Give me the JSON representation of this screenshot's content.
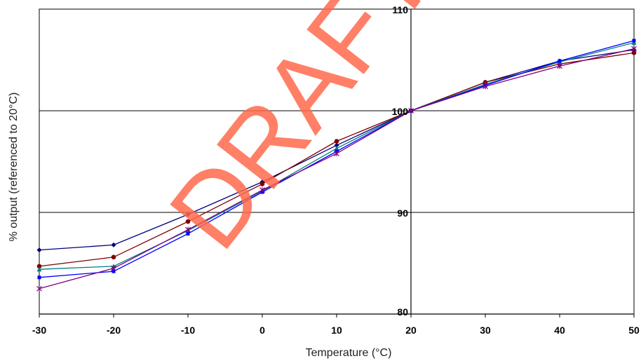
{
  "chart_data": {
    "type": "line",
    "title": "",
    "xlabel": "Temperature (°C)",
    "ylabel": "% output (referenced to 20°C)",
    "x": [
      -30,
      -20,
      -10,
      0,
      10,
      20,
      30,
      40,
      50
    ],
    "xlim": [
      -30,
      50
    ],
    "ylim": [
      80,
      110
    ],
    "x_tick_labels": [
      "-30",
      "-20",
      "-10",
      "0",
      "10",
      "20",
      "30",
      "40",
      "50"
    ],
    "y_tick_labels": [
      "80",
      "90",
      "100",
      "110"
    ],
    "y_ticks": [
      80,
      90,
      100,
      110
    ],
    "grid": "horizontal",
    "legend": "none",
    "watermark": "DRAFT",
    "series": [
      {
        "color": "#000080",
        "marker": "diamond",
        "values": [
          86.3,
          86.8,
          89.8,
          93.0,
          96.6,
          100.0,
          102.8,
          104.9,
          106.0
        ]
      },
      {
        "color": "#800000",
        "marker": "circle",
        "values": [
          84.7,
          85.6,
          89.1,
          92.8,
          97.0,
          100.0,
          102.8,
          104.6,
          105.7
        ]
      },
      {
        "color": "#008080",
        "marker": "triangle",
        "values": [
          84.4,
          84.7,
          88.2,
          92.1,
          96.3,
          100.0,
          102.6,
          104.8,
          106.7
        ]
      },
      {
        "color": "#0000ff",
        "marker": "square",
        "values": [
          83.6,
          84.2,
          87.9,
          92.0,
          96.0,
          100.0,
          102.5,
          104.9,
          106.9
        ]
      },
      {
        "color": "#800080",
        "marker": "x",
        "values": [
          82.5,
          84.5,
          88.3,
          92.2,
          95.8,
          100.0,
          102.4,
          104.4,
          106.1
        ]
      }
    ]
  }
}
